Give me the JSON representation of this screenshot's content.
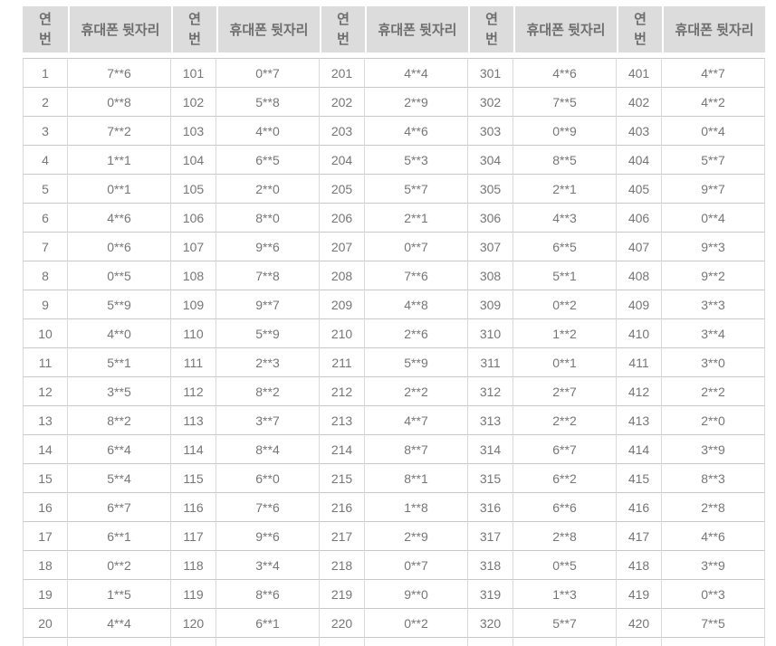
{
  "table": {
    "header": {
      "no_label": "연번",
      "phone_label": "휴대폰 뒷자리"
    },
    "pairs": 5,
    "rows": [
      [
        "1",
        "7**6",
        "101",
        "0**7",
        "201",
        "4**4",
        "301",
        "4**6",
        "401",
        "4**7"
      ],
      [
        "2",
        "0**8",
        "102",
        "5**8",
        "202",
        "2**9",
        "302",
        "7**5",
        "402",
        "4**2"
      ],
      [
        "3",
        "7**2",
        "103",
        "4**0",
        "203",
        "4**6",
        "303",
        "0**9",
        "403",
        "0**4"
      ],
      [
        "4",
        "1**1",
        "104",
        "6**5",
        "204",
        "5**3",
        "304",
        "8**5",
        "404",
        "5**7"
      ],
      [
        "5",
        "0**1",
        "105",
        "2**0",
        "205",
        "5**7",
        "305",
        "2**1",
        "405",
        "9**7"
      ],
      [
        "6",
        "4**6",
        "106",
        "8**0",
        "206",
        "2**1",
        "306",
        "4**3",
        "406",
        "0**4"
      ],
      [
        "7",
        "0**6",
        "107",
        "9**6",
        "207",
        "0**7",
        "307",
        "6**5",
        "407",
        "9**3"
      ],
      [
        "8",
        "0**5",
        "108",
        "7**8",
        "208",
        "7**6",
        "308",
        "5**1",
        "408",
        "9**2"
      ],
      [
        "9",
        "5**9",
        "109",
        "9**7",
        "209",
        "4**8",
        "309",
        "0**2",
        "409",
        "3**3"
      ],
      [
        "10",
        "4**0",
        "110",
        "5**9",
        "210",
        "2**6",
        "310",
        "1**2",
        "410",
        "3**4"
      ],
      [
        "11",
        "5**1",
        "111",
        "2**3",
        "211",
        "5**9",
        "311",
        "0**1",
        "411",
        "3**0"
      ],
      [
        "12",
        "3**5",
        "112",
        "8**2",
        "212",
        "2**2",
        "312",
        "2**7",
        "412",
        "2**2"
      ],
      [
        "13",
        "8**2",
        "113",
        "3**7",
        "213",
        "4**7",
        "313",
        "2**2",
        "413",
        "2**0"
      ],
      [
        "14",
        "6**4",
        "114",
        "8**4",
        "214",
        "8**7",
        "314",
        "6**7",
        "414",
        "3**9"
      ],
      [
        "15",
        "5**4",
        "115",
        "6**0",
        "215",
        "8**1",
        "315",
        "6**2",
        "415",
        "8**3"
      ],
      [
        "16",
        "6**7",
        "116",
        "7**6",
        "216",
        "1**8",
        "316",
        "6**6",
        "416",
        "2**8"
      ],
      [
        "17",
        "6**1",
        "117",
        "9**6",
        "217",
        "2**9",
        "317",
        "2**8",
        "417",
        "4**6"
      ],
      [
        "18",
        "0**2",
        "118",
        "3**4",
        "218",
        "0**7",
        "318",
        "0**5",
        "418",
        "3**9"
      ],
      [
        "19",
        "1**5",
        "119",
        "8**6",
        "219",
        "9**0",
        "319",
        "1**3",
        "419",
        "0**3"
      ],
      [
        "20",
        "4**4",
        "120",
        "6**1",
        "220",
        "0**2",
        "320",
        "5**7",
        "420",
        "7**5"
      ]
    ],
    "partial_bottom_row": true
  },
  "colors": {
    "header_bg": "#dcdcdc",
    "header_text": "#6e6e6e",
    "cell_text": "#767676",
    "row_border": "#c9c9c9",
    "col_border": "#d9d9d9"
  }
}
